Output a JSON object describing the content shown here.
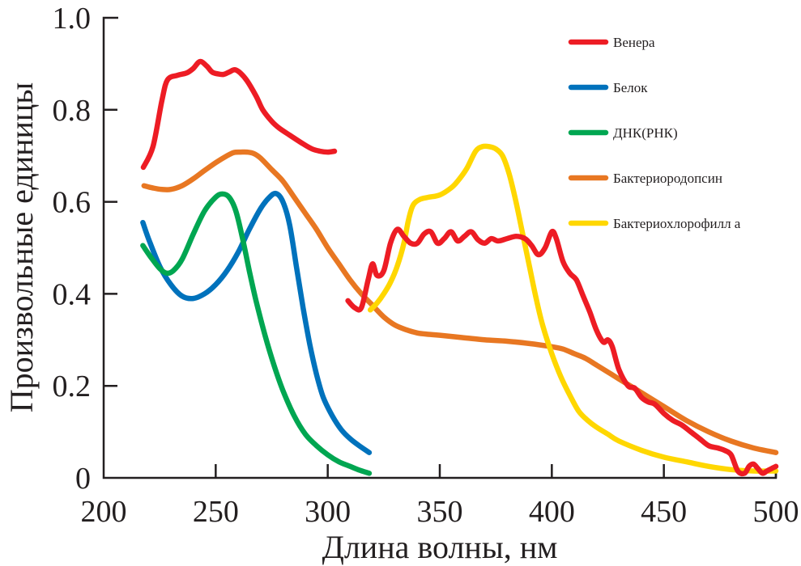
{
  "chart_data": {
    "type": "line",
    "title": "",
    "xlabel": "Длина волны, нм",
    "ylabel": "Произвольные единицы",
    "xlim": [
      200,
      500
    ],
    "ylim": [
      0,
      1.0
    ],
    "xticks": [
      200,
      250,
      300,
      350,
      400,
      450,
      500
    ],
    "xtick_labels": [
      "200",
      "250",
      "300",
      "350",
      "400",
      "450",
      "500"
    ],
    "yticks": [
      0,
      0.2,
      0.4,
      0.6,
      0.8,
      1.0
    ],
    "ytick_labels": [
      "0",
      "0.2",
      "0.4",
      "0.6",
      "0.8",
      "1.0"
    ],
    "grid": false,
    "legend_position": "top-right",
    "series": [
      {
        "name": "Венера",
        "color": "#ed1c24",
        "segments": [
          {
            "x": [
              217.7,
              222,
              226,
              228.5,
              233,
              237,
              240,
              243,
              246,
              248.4,
              251,
              253.5,
              256,
              258.5,
              261,
              264,
              268,
              271,
              275,
              278.4,
              283,
              289,
              293,
              296.5,
              300,
              303
            ],
            "y": [
              0.675,
              0.72,
              0.82,
              0.865,
              0.875,
              0.88,
              0.89,
              0.905,
              0.895,
              0.882,
              0.878,
              0.877,
              0.882,
              0.887,
              0.88,
              0.863,
              0.83,
              0.8,
              0.775,
              0.76,
              0.745,
              0.726,
              0.715,
              0.71,
              0.708,
              0.71
            ]
          },
          {
            "x": [
              309,
              312,
              315,
              318,
              320,
              322,
              325,
              328,
              331,
              334,
              337,
              340,
              343,
              346,
              349,
              352,
              355,
              358,
              361,
              364,
              367,
              370,
              373,
              376,
              380,
              384,
              388,
              391,
              394,
              397,
              400,
              402,
              405,
              408,
              411,
              414,
              417,
              420,
              423,
              425,
              427,
              430,
              434,
              437,
              440,
              443,
              446,
              450,
              454,
              458,
              462,
              466,
              470,
              474,
              477,
              480,
              483,
              486,
              488,
              490,
              492,
              494,
              496,
              498,
              500
            ],
            "y": [
              0.385,
              0.37,
              0.37,
              0.43,
              0.465,
              0.44,
              0.45,
              0.51,
              0.54,
              0.525,
              0.51,
              0.51,
              0.53,
              0.535,
              0.51,
              0.52,
              0.535,
              0.515,
              0.525,
              0.535,
              0.518,
              0.51,
              0.52,
              0.515,
              0.52,
              0.525,
              0.52,
              0.505,
              0.485,
              0.5,
              0.535,
              0.52,
              0.47,
              0.445,
              0.43,
              0.395,
              0.36,
              0.32,
              0.295,
              0.3,
              0.285,
              0.235,
              0.2,
              0.195,
              0.175,
              0.165,
              0.16,
              0.14,
              0.125,
              0.115,
              0.1,
              0.085,
              0.07,
              0.065,
              0.06,
              0.05,
              0.015,
              0.01,
              0.025,
              0.03,
              0.02,
              0.01,
              0.015,
              0.02,
              0.025
            ]
          }
        ]
      },
      {
        "name": "Белок",
        "color": "#0072bc",
        "segments": [
          {
            "x": [
              217.5,
              220,
              225,
              230,
              235,
              240,
              245,
              250,
              255,
              260,
              265,
              270,
              274,
              277,
              280,
              283,
              286,
              289,
              292,
              295,
              298,
              302,
              306,
              310,
              314,
              318.5
            ],
            "y": [
              0.555,
              0.52,
              0.46,
              0.42,
              0.395,
              0.39,
              0.4,
              0.42,
              0.45,
              0.49,
              0.54,
              0.585,
              0.61,
              0.618,
              0.6,
              0.55,
              0.46,
              0.37,
              0.29,
              0.225,
              0.175,
              0.135,
              0.105,
              0.085,
              0.07,
              0.055
            ]
          }
        ]
      },
      {
        "name": "ДНК(РНК)",
        "color": "#00a651",
        "segments": [
          {
            "x": [
              217.5,
              221,
              225,
              228,
              231,
              235,
              240,
              245,
              250,
              253,
              256,
              259,
              262,
              265,
              268,
              272,
              276,
              280,
              285,
              290,
              295,
              300,
              305,
              310,
              314,
              318.5
            ],
            "y": [
              0.505,
              0.48,
              0.455,
              0.445,
              0.45,
              0.475,
              0.53,
              0.58,
              0.61,
              0.617,
              0.61,
              0.58,
              0.52,
              0.45,
              0.385,
              0.31,
              0.245,
              0.19,
              0.135,
              0.095,
              0.07,
              0.05,
              0.035,
              0.025,
              0.017,
              0.01
            ]
          }
        ]
      },
      {
        "name": "Бактериородопсин",
        "color": "#e87722",
        "segments": [
          {
            "x": [
              218,
              222,
              226,
              230,
              235,
              240,
              245,
              250,
              255,
              258,
              261,
              264,
              267,
              270,
              275,
              280,
              285,
              290,
              295,
              300,
              305,
              310,
              315,
              320,
              325,
              330,
              335,
              340,
              345,
              350,
              360,
              370,
              380,
              390,
              400,
              405,
              410,
              415,
              420,
              425,
              430,
              440,
              450,
              460,
              470,
              480,
              490,
              500
            ],
            "y": [
              0.635,
              0.63,
              0.627,
              0.627,
              0.635,
              0.65,
              0.668,
              0.685,
              0.7,
              0.707,
              0.708,
              0.708,
              0.705,
              0.695,
              0.67,
              0.645,
              0.61,
              0.575,
              0.54,
              0.5,
              0.465,
              0.43,
              0.4,
              0.375,
              0.35,
              0.332,
              0.322,
              0.315,
              0.312,
              0.31,
              0.305,
              0.3,
              0.297,
              0.292,
              0.285,
              0.28,
              0.27,
              0.26,
              0.245,
              0.23,
              0.215,
              0.185,
              0.155,
              0.125,
              0.1,
              0.08,
              0.065,
              0.055
            ]
          }
        ]
      },
      {
        "name": "Бактериохлорофилл а",
        "color": "#ffd700",
        "segments": [
          {
            "x": [
              319,
              322,
              325,
              328,
              331,
              334,
              336,
              338,
              341,
              345,
              350,
              355,
              358,
              362,
              366,
              369,
              372,
              375,
              378,
              381,
              384,
              387,
              390,
              393,
              396,
              400,
              404,
              408,
              412,
              416,
              420,
              425,
              430,
              440,
              450,
              460,
              470,
              480,
              490,
              500
            ],
            "y": [
              0.365,
              0.38,
              0.4,
              0.425,
              0.46,
              0.51,
              0.56,
              0.592,
              0.605,
              0.61,
              0.615,
              0.63,
              0.645,
              0.672,
              0.71,
              0.72,
              0.72,
              0.715,
              0.7,
              0.66,
              0.6,
              0.53,
              0.46,
              0.39,
              0.33,
              0.27,
              0.22,
              0.18,
              0.145,
              0.125,
              0.11,
              0.095,
              0.08,
              0.06,
              0.045,
              0.035,
              0.025,
              0.018,
              0.015,
              0.015
            ]
          }
        ]
      }
    ]
  }
}
